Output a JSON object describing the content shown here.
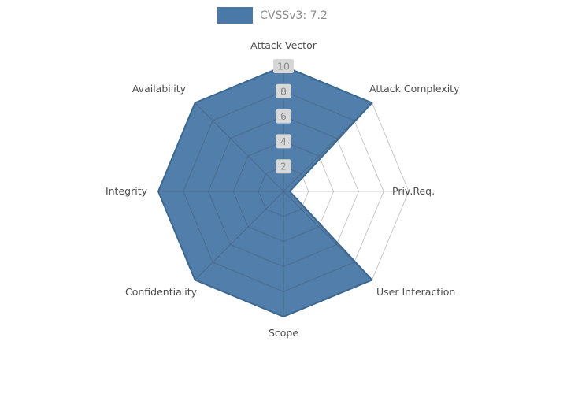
{
  "legend": {
    "label": "CVSSv3: 7.2"
  },
  "chart_data": {
    "type": "radar",
    "title": "CVSSv3: 7.2",
    "categories": [
      "Attack Vector",
      "Attack Complexity",
      "Priv.Req.",
      "User Interaction",
      "Scope",
      "Confidentiality",
      "Integrity",
      "Availability"
    ],
    "series": [
      {
        "name": "CVSSv3: 7.2",
        "values": [
          10,
          10,
          0.5,
          10,
          10,
          10,
          10,
          10
        ]
      }
    ],
    "ticks": [
      2,
      4,
      6,
      8,
      10
    ],
    "rlim": [
      0,
      10
    ],
    "start_angle_deg": 90,
    "direction": "clockwise",
    "grid": true,
    "legend_position": "top-center",
    "colors": {
      "fill": "#4A79A8",
      "edge": "#3C688F",
      "grid": "#3F3F3F",
      "axis_label": "#4D4D4D",
      "tick_label": "#8A8A8A",
      "tick_box": "#D8D8D8",
      "legend_text": "#8C8C8C",
      "background": "#FFFFFF"
    }
  }
}
